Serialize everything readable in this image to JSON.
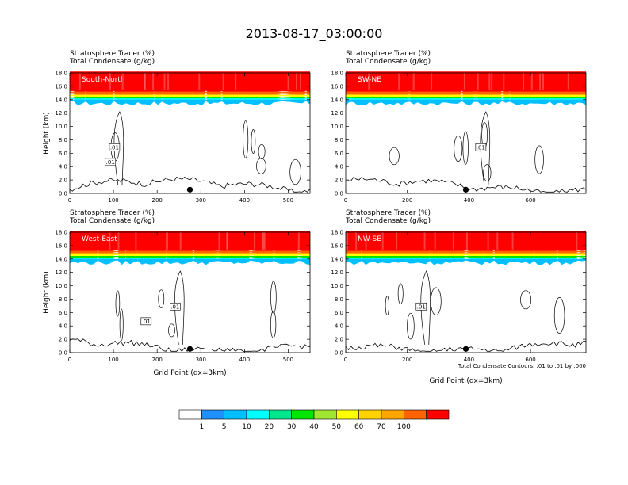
{
  "title": "2013-08-17_03:00:00",
  "chart_data": [
    {
      "type": "heatmap",
      "panel": "South-North",
      "fields": [
        "Stratosphere Tracer   (%)",
        "Total Condensate   (g/kg)"
      ],
      "ylabel": "Height (km)",
      "xlabel": "",
      "xlim": [
        0,
        550
      ],
      "ylim": [
        0,
        18
      ],
      "xticks": [
        "0",
        "100",
        "200",
        "300",
        "400",
        "500"
      ],
      "xtick_values": [
        0,
        100,
        200,
        300,
        400,
        500
      ],
      "contour_labels": [
        ".01",
        ".01"
      ],
      "marker_x": 275
    },
    {
      "type": "heatmap",
      "panel": "SW-NE",
      "fields": [
        "Stratosphere Tracer   (%)",
        "Total Condensate   (g/kg)"
      ],
      "ylabel": "",
      "xlabel": "",
      "xlim": [
        0,
        780
      ],
      "ylim": [
        0,
        18
      ],
      "xticks": [
        "0",
        "200",
        "400",
        "600"
      ],
      "xtick_values": [
        0,
        200,
        400,
        600
      ],
      "contour_labels": [
        ".01"
      ],
      "marker_x": 390
    },
    {
      "type": "heatmap",
      "panel": "West-East",
      "fields": [
        "Stratosphere Tracer   (%)",
        "Total Condensate   (g/kg)"
      ],
      "ylabel": "Height (km)",
      "xlabel": "Grid Point (dx=3km)",
      "xlim": [
        0,
        550
      ],
      "ylim": [
        0,
        18
      ],
      "xticks": [
        "0",
        "100",
        "200",
        "300",
        "400",
        "500"
      ],
      "xtick_values": [
        0,
        100,
        200,
        300,
        400,
        500
      ],
      "contour_labels": [
        ".01",
        ".01"
      ],
      "marker_x": 275
    },
    {
      "type": "heatmap",
      "panel": "NW-SE",
      "fields": [
        "Stratosphere Tracer   (%)",
        "Total Condensate   (g/kg)"
      ],
      "ylabel": "",
      "xlabel": "Grid Point (dx=3km)",
      "xlim": [
        0,
        780
      ],
      "ylim": [
        0,
        18
      ],
      "xticks": [
        "0",
        "200",
        "400",
        "600"
      ],
      "xtick_values": [
        0,
        200,
        400,
        600
      ],
      "contour_labels": [
        ".01"
      ],
      "marker_x": 390,
      "footnote": "Total Condensate Contours: .01 to .01 by .000"
    }
  ],
  "yticks": [
    "0.0",
    "2.0",
    "4.0",
    "6.0",
    "8.0",
    "10.0",
    "12.0",
    "14.0",
    "16.0",
    "18.0"
  ],
  "ytick_values": [
    0,
    2,
    4,
    6,
    8,
    10,
    12,
    14,
    16,
    18
  ],
  "colorbar": {
    "labels": [
      "1",
      "5",
      "10",
      "20",
      "30",
      "40",
      "50",
      "60",
      "70",
      "100"
    ],
    "colors": [
      "#ffffff",
      "#1e90ff",
      "#00bfff",
      "#00ffff",
      "#00e68c",
      "#00e600",
      "#a0e632",
      "#ffff00",
      "#ffd200",
      "#ffa500",
      "#ff6400",
      "#ff0000"
    ]
  }
}
